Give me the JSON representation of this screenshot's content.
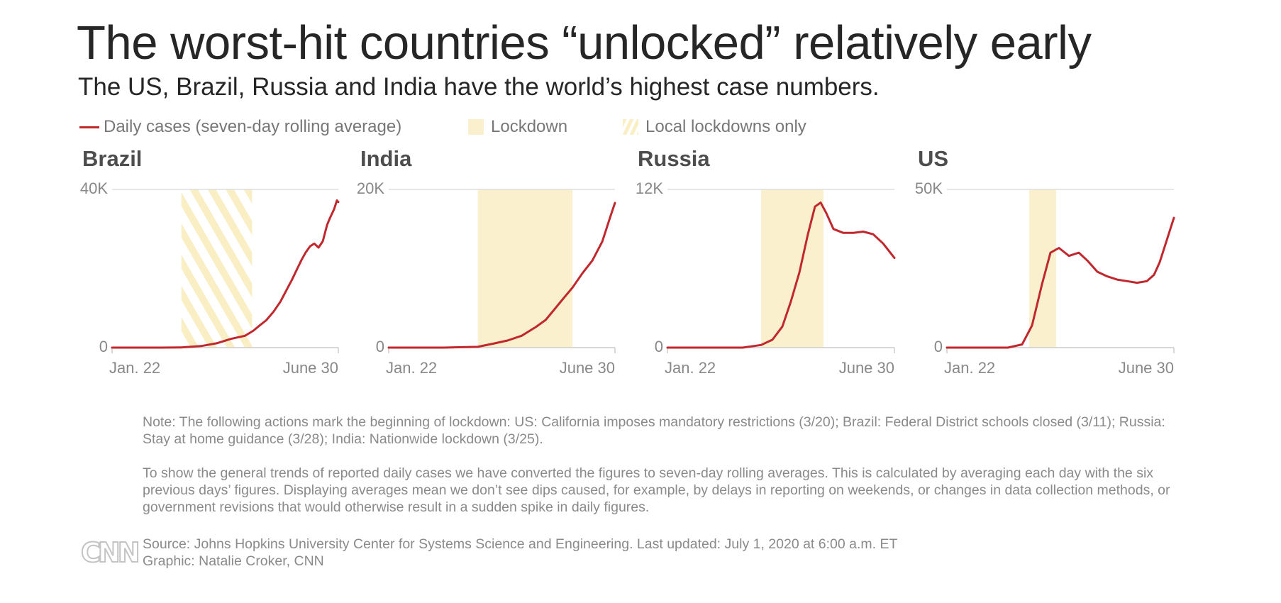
{
  "title": "The worst-hit countries “unlocked” relatively early",
  "subtitle": "The US, Brazil, Russia and India have the world’s highest case numbers.",
  "legend": {
    "daily_cases": "Daily cases (seven-day rolling average)",
    "lockdown": "Lockdown",
    "local_lockdowns": "Local lockdowns only"
  },
  "colors": {
    "line": "#c0282d",
    "lockdown": "#faf0cd",
    "hatch": "#f9eec4",
    "axis": "#cccccc",
    "tick_text": "#888888",
    "panel_title": "#4d4d4d"
  },
  "notes": {
    "lockdown_note": "Note: The following actions mark the beginning of lockdown: US: California imposes mandatory restrictions (3/20); Brazil: Federal District schools closed (3/11); Russia: Stay at home guidance (3/28); India: Nationwide lockdown (3/25).",
    "averages_note": "To show the general trends of reported daily cases we have converted the figures to seven-day rolling averages. This is calculated by averaging each day with the six previous days’ figures. Displaying averages mean we don’t see dips caused, for example, by delays in reporting on weekends, or changes in data collection methods, or government revisions that would otherwise result in a sudden spike in daily figures."
  },
  "source": {
    "line1": "Source: Johns Hopkins University Center for Systems Science and Engineering. Last updated: July 1, 2020 at 6:00 a.m. ET",
    "line2": "Graphic: Natalie Croker, CNN",
    "logo": "CNN"
  },
  "chart_data": [
    {
      "type": "line",
      "title": "Brazil",
      "x_range": [
        "2020-01-22",
        "2020-06-30"
      ],
      "x_tick_labels": [
        "Jan. 22",
        "June 30"
      ],
      "ylim": [
        0,
        40000
      ],
      "y_tick_labels": [
        "0",
        "40K"
      ],
      "grid": true,
      "shading": {
        "kind": "local_lockdowns_only",
        "start": "2020-03-11",
        "end": "2020-04-30"
      },
      "series": [
        {
          "name": "Daily cases (seven-day rolling average)",
          "x": [
            "2020-01-22",
            "2020-02-25",
            "2020-03-11",
            "2020-03-25",
            "2020-04-05",
            "2020-04-15",
            "2020-04-25",
            "2020-05-01",
            "2020-05-05",
            "2020-05-10",
            "2020-05-15",
            "2020-05-20",
            "2020-05-25",
            "2020-05-28",
            "2020-06-01",
            "2020-06-04",
            "2020-06-07",
            "2020-06-10",
            "2020-06-13",
            "2020-06-16",
            "2020-06-19",
            "2020-06-22",
            "2020-06-24",
            "2020-06-27",
            "2020-06-29",
            "2020-06-30"
          ],
          "y": [
            0,
            0,
            50,
            400,
            1100,
            2200,
            3000,
            4300,
            5500,
            6900,
            9000,
            11600,
            15000,
            17000,
            20000,
            22200,
            24100,
            25600,
            26300,
            25300,
            26900,
            31000,
            32700,
            35000,
            37200,
            36800
          ]
        }
      ]
    },
    {
      "type": "line",
      "title": "India",
      "x_range": [
        "2020-01-22",
        "2020-06-30"
      ],
      "x_tick_labels": [
        "Jan. 22",
        "June 30"
      ],
      "ylim": [
        0,
        20000
      ],
      "y_tick_labels": [
        "0",
        "20K"
      ],
      "grid": true,
      "shading": {
        "kind": "lockdown",
        "start": "2020-03-25",
        "end": "2020-05-31"
      },
      "series": [
        {
          "name": "Daily cases (seven-day rolling average)",
          "x": [
            "2020-01-22",
            "2020-03-01",
            "2020-03-25",
            "2020-04-05",
            "2020-04-15",
            "2020-04-25",
            "2020-05-05",
            "2020-05-12",
            "2020-05-18",
            "2020-05-24",
            "2020-05-31",
            "2020-06-07",
            "2020-06-14",
            "2020-06-21",
            "2020-06-27",
            "2020-06-30"
          ],
          "y": [
            0,
            0,
            100,
            500,
            900,
            1500,
            2600,
            3500,
            4800,
            6100,
            7600,
            9400,
            11000,
            13400,
            16700,
            18300
          ]
        }
      ]
    },
    {
      "type": "line",
      "title": "Russia",
      "x_range": [
        "2020-01-22",
        "2020-06-30"
      ],
      "x_tick_labels": [
        "Jan. 22",
        "June 30"
      ],
      "ylim": [
        0,
        12000
      ],
      "y_tick_labels": [
        "0",
        "12K"
      ],
      "grid": true,
      "shading": {
        "kind": "lockdown",
        "start": "2020-03-28",
        "end": "2020-05-11"
      },
      "series": [
        {
          "name": "Daily cases (seven-day rolling average)",
          "x": [
            "2020-01-22",
            "2020-03-15",
            "2020-03-28",
            "2020-04-05",
            "2020-04-12",
            "2020-04-18",
            "2020-04-24",
            "2020-04-30",
            "2020-05-05",
            "2020-05-09",
            "2020-05-13",
            "2020-05-18",
            "2020-05-25",
            "2020-06-01",
            "2020-06-08",
            "2020-06-15",
            "2020-06-22",
            "2020-06-30"
          ],
          "y": [
            0,
            0,
            200,
            600,
            1600,
            3500,
            5700,
            8600,
            10700,
            11000,
            10200,
            9000,
            8700,
            8700,
            8800,
            8600,
            7900,
            6800
          ]
        }
      ]
    },
    {
      "type": "line",
      "title": "US",
      "x_range": [
        "2020-01-22",
        "2020-06-30"
      ],
      "x_tick_labels": [
        "Jan. 22",
        "June 30"
      ],
      "ylim": [
        0,
        50000
      ],
      "y_tick_labels": [
        "0",
        "50K"
      ],
      "grid": true,
      "shading": {
        "kind": "lockdown",
        "start": "2020-03-20",
        "end": "2020-04-08"
      },
      "series": [
        {
          "name": "Daily cases (seven-day rolling average)",
          "x": [
            "2020-01-22",
            "2020-03-05",
            "2020-03-15",
            "2020-03-22",
            "2020-03-29",
            "2020-04-04",
            "2020-04-10",
            "2020-04-17",
            "2020-04-24",
            "2020-04-30",
            "2020-05-07",
            "2020-05-14",
            "2020-05-21",
            "2020-05-28",
            "2020-06-04",
            "2020-06-11",
            "2020-06-16",
            "2020-06-20",
            "2020-06-25",
            "2020-06-30"
          ],
          "y": [
            0,
            0,
            1000,
            7000,
            20000,
            30000,
            31500,
            29000,
            30000,
            27500,
            24000,
            22500,
            21500,
            21000,
            20500,
            21000,
            23000,
            27000,
            34000,
            41000
          ]
        }
      ]
    }
  ]
}
